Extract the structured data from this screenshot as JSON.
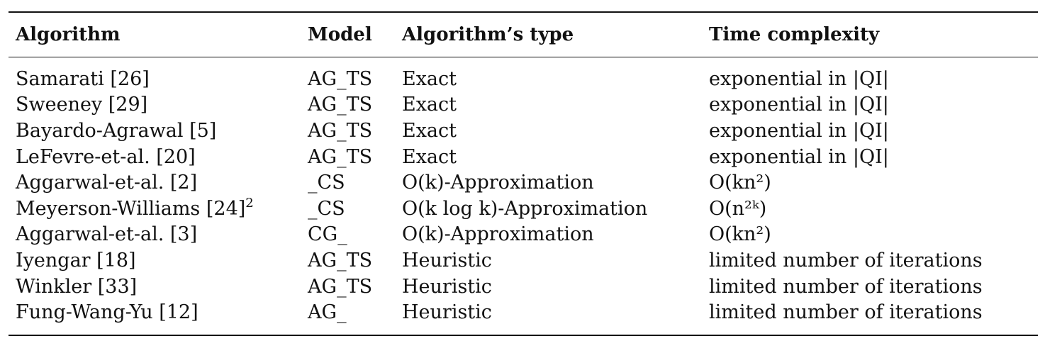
{
  "table": {
    "headers": [
      "Algorithm",
      "Model",
      "Algorithm’s type",
      "Time complexity"
    ],
    "rows": [
      {
        "algorithm": "Samarati [26]",
        "model": "AG_TS",
        "type": "Exact",
        "complexity": "exponential in |QI|"
      },
      {
        "algorithm": "Sweeney [29]",
        "model": "AG_TS",
        "type": "Exact",
        "complexity": "exponential in |QI|"
      },
      {
        "algorithm": "Bayardo-Agrawal [5]",
        "model": "AG_TS",
        "type": "Exact",
        "complexity": "exponential in |QI|"
      },
      {
        "algorithm": "LeFevre-et-al. [20]",
        "model": "AG_TS",
        "type": "Exact",
        "complexity": "exponential in |QI|"
      },
      {
        "algorithm": "Aggarwal-et-al. [2]",
        "model": "_CS",
        "type": "O(k)-Approximation",
        "complexity": "O(kn²)"
      },
      {
        "algorithm": "Meyerson-Williams [24]",
        "footnote": "2",
        "model": "_CS",
        "type": "O(k log k)-Approximation",
        "complexity": "O(n²ᵏ)"
      },
      {
        "algorithm": "Aggarwal-et-al. [3]",
        "model": "CG_",
        "type": "O(k)-Approximation",
        "complexity": "O(kn²)"
      },
      {
        "algorithm": "Iyengar [18]",
        "model": "AG_TS",
        "type": "Heuristic",
        "complexity": "limited number of iterations"
      },
      {
        "algorithm": "Winkler [33]",
        "model": "AG_TS",
        "type": "Heuristic",
        "complexity": "limited number of iterations"
      },
      {
        "algorithm": "Fung-Wang-Yu [12]",
        "model": "AG_",
        "type": "Heuristic",
        "complexity": "limited number of iterations"
      }
    ]
  }
}
